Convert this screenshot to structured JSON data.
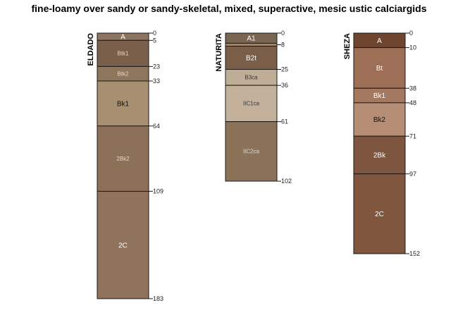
{
  "chart_data": {
    "type": "soil-profile-sketch",
    "title": "fine-loamy over sandy or sandy-skeletal, mixed, superactive, mesic ustic calciargids",
    "depth_units": "cm",
    "profiles": [
      {
        "name": "ELDADO",
        "horizons": [
          {
            "name": "A",
            "top": 0,
            "bottom": 5,
            "color": "#8c7560",
            "label_color": "#ffffff"
          },
          {
            "name": "Btk1",
            "top": 5,
            "bottom": 23,
            "color": "#7a5f4a",
            "label_color": "#e4d9cf"
          },
          {
            "name": "Btk2",
            "top": 23,
            "bottom": 33,
            "color": "#8e765c",
            "label_color": "#e4d9cf"
          },
          {
            "name": "Bk1",
            "top": 33,
            "bottom": 64,
            "color": "#a88f72",
            "label_color": "#111111"
          },
          {
            "name": "2Bk2",
            "top": 64,
            "bottom": 109,
            "color": "#8c7058",
            "label_color": "#e4d9cf"
          },
          {
            "name": "2C",
            "top": 109,
            "bottom": 183,
            "color": "#8f735c",
            "label_color": "#ffffff"
          }
        ],
        "depth_labels": [
          0,
          5,
          23,
          33,
          64,
          109,
          183
        ]
      },
      {
        "name": "NATURITA",
        "horizons": [
          {
            "name": "A1",
            "top": 0,
            "bottom": 7,
            "color": "#7a6553",
            "label_color": "#ffffff"
          },
          {
            "name": "",
            "top": 7,
            "bottom": 9,
            "color": "#9c8670",
            "label_color": "#ffffff"
          },
          {
            "name": "B2t",
            "top": 9,
            "bottom": 25,
            "color": "#7a5e48",
            "label_color": "#ffffff"
          },
          {
            "name": "B3ca",
            "top": 25,
            "bottom": 36,
            "color": "#c0ad95",
            "label_color": "#333333"
          },
          {
            "name": "IIC1ca",
            "top": 36,
            "bottom": 61,
            "color": "#c4b19b",
            "label_color": "#333333"
          },
          {
            "name": "IIC2ca",
            "top": 61,
            "bottom": 102,
            "color": "#8c7258",
            "label_color": "#e4d9cf"
          }
        ],
        "depth_labels": [
          0,
          8,
          25,
          36,
          61,
          102
        ]
      },
      {
        "name": "SHEZA",
        "horizons": [
          {
            "name": "A",
            "top": 0,
            "bottom": 10,
            "color": "#6e452e",
            "label_color": "#ffffff"
          },
          {
            "name": "Bt",
            "top": 10,
            "bottom": 38,
            "color": "#9e6f57",
            "label_color": "#ffffff"
          },
          {
            "name": "Bk1",
            "top": 38,
            "bottom": 48,
            "color": "#a57860",
            "label_color": "#ffffff"
          },
          {
            "name": "Bk2",
            "top": 48,
            "bottom": 71,
            "color": "#b68d75",
            "label_color": "#111111"
          },
          {
            "name": "2Bk",
            "top": 71,
            "bottom": 97,
            "color": "#7e5640",
            "label_color": "#ffffff"
          },
          {
            "name": "2C",
            "top": 97,
            "bottom": 152,
            "color": "#80563f",
            "label_color": "#ffffff"
          }
        ],
        "depth_labels": [
          0,
          10,
          38,
          48,
          71,
          97,
          152
        ]
      }
    ]
  }
}
